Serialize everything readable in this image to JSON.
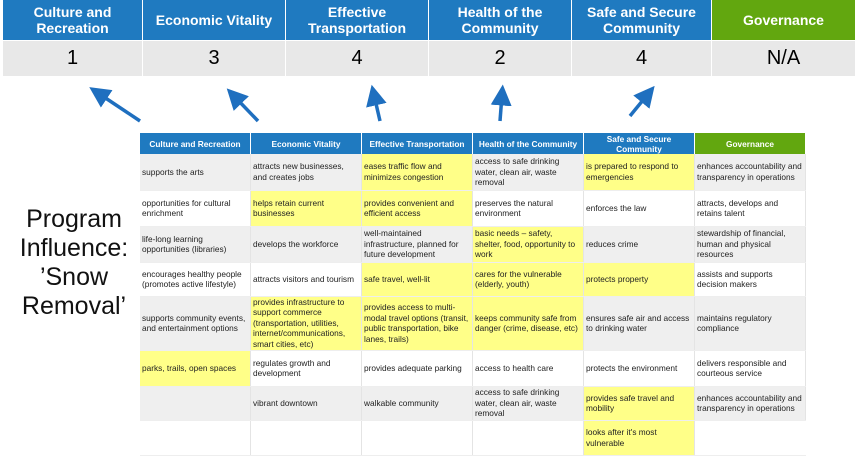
{
  "top_headers": [
    "Culture and Recreation",
    "Economic Vitality",
    "Effective Transportation",
    "Health of the Community",
    "Safe and Secure Community",
    "Governance"
  ],
  "scores": [
    "1",
    "3",
    "4",
    "2",
    "4",
    "N/A"
  ],
  "program_label": "Program Influence: ’Snow Removal’",
  "colors": {
    "header_blue": "#1f7ac0",
    "governance_green": "#62a70f",
    "highlight": "#ffff88",
    "arrow": "#1f6fbf"
  },
  "table": {
    "headers": [
      "Culture and Recreation",
      "Economic Vitality",
      "Effective Transportation",
      "Health of the Community",
      "Safe and Secure Community",
      "Governance"
    ],
    "rows": [
      [
        "supports the arts",
        "attracts new businesses, and creates jobs",
        "eases traffic flow and minimizes congestion",
        "access to safe drinking water, clean air, waste removal",
        "is prepared to respond to emergencies",
        "enhances accountability and transparency in operations"
      ],
      [
        "opportunities for cultural enrichment",
        "helps retain current businesses",
        "provides convenient and efficient access",
        "preserves the natural environment",
        "enforces the law",
        "attracts, develops and retains talent"
      ],
      [
        "life-long learning opportunities (libraries)",
        "develops the workforce",
        "well-maintained infrastructure, planned for future development",
        "basic needs – safety, shelter, food, opportunity to work",
        "reduces crime",
        "stewardship of financial, human and physical resources"
      ],
      [
        "encourages healthy people (promotes active lifestyle)",
        "attracts visitors and tourism",
        "safe travel, well-lit",
        "cares for the vulnerable (elderly, youth)",
        "protects property",
        "assists and supports decision makers"
      ],
      [
        "supports community events, and entertainment options",
        "provides infrastructure to support commerce (transportation, utilities, internet/communications, smart cities, etc)",
        "provides access to multi-modal travel options (transit, public transportation, bike lanes, trails)",
        "keeps community safe from danger (crime, disease, etc)",
        "ensures safe air and access to drinking water",
        "maintains regulatory compliance"
      ],
      [
        "parks, trails, open spaces",
        "regulates growth and development",
        "provides adequate parking",
        "access to health care",
        "protects the environment",
        "delivers responsible and courteous service"
      ],
      [
        "",
        "vibrant downtown",
        "walkable community",
        "access to safe drinking water, clean air, waste removal",
        "provides safe travel and mobility",
        "enhances accountability and transparency in operations"
      ],
      [
        "",
        "",
        "",
        "",
        "looks after it's most vulnerable",
        ""
      ]
    ],
    "highlighted": [
      [
        2,
        4
      ],
      [
        1,
        2
      ],
      [
        3
      ],
      [
        2,
        3,
        4
      ],
      [
        1,
        2,
        3
      ],
      [
        0
      ],
      [
        4
      ],
      [
        4
      ]
    ]
  }
}
